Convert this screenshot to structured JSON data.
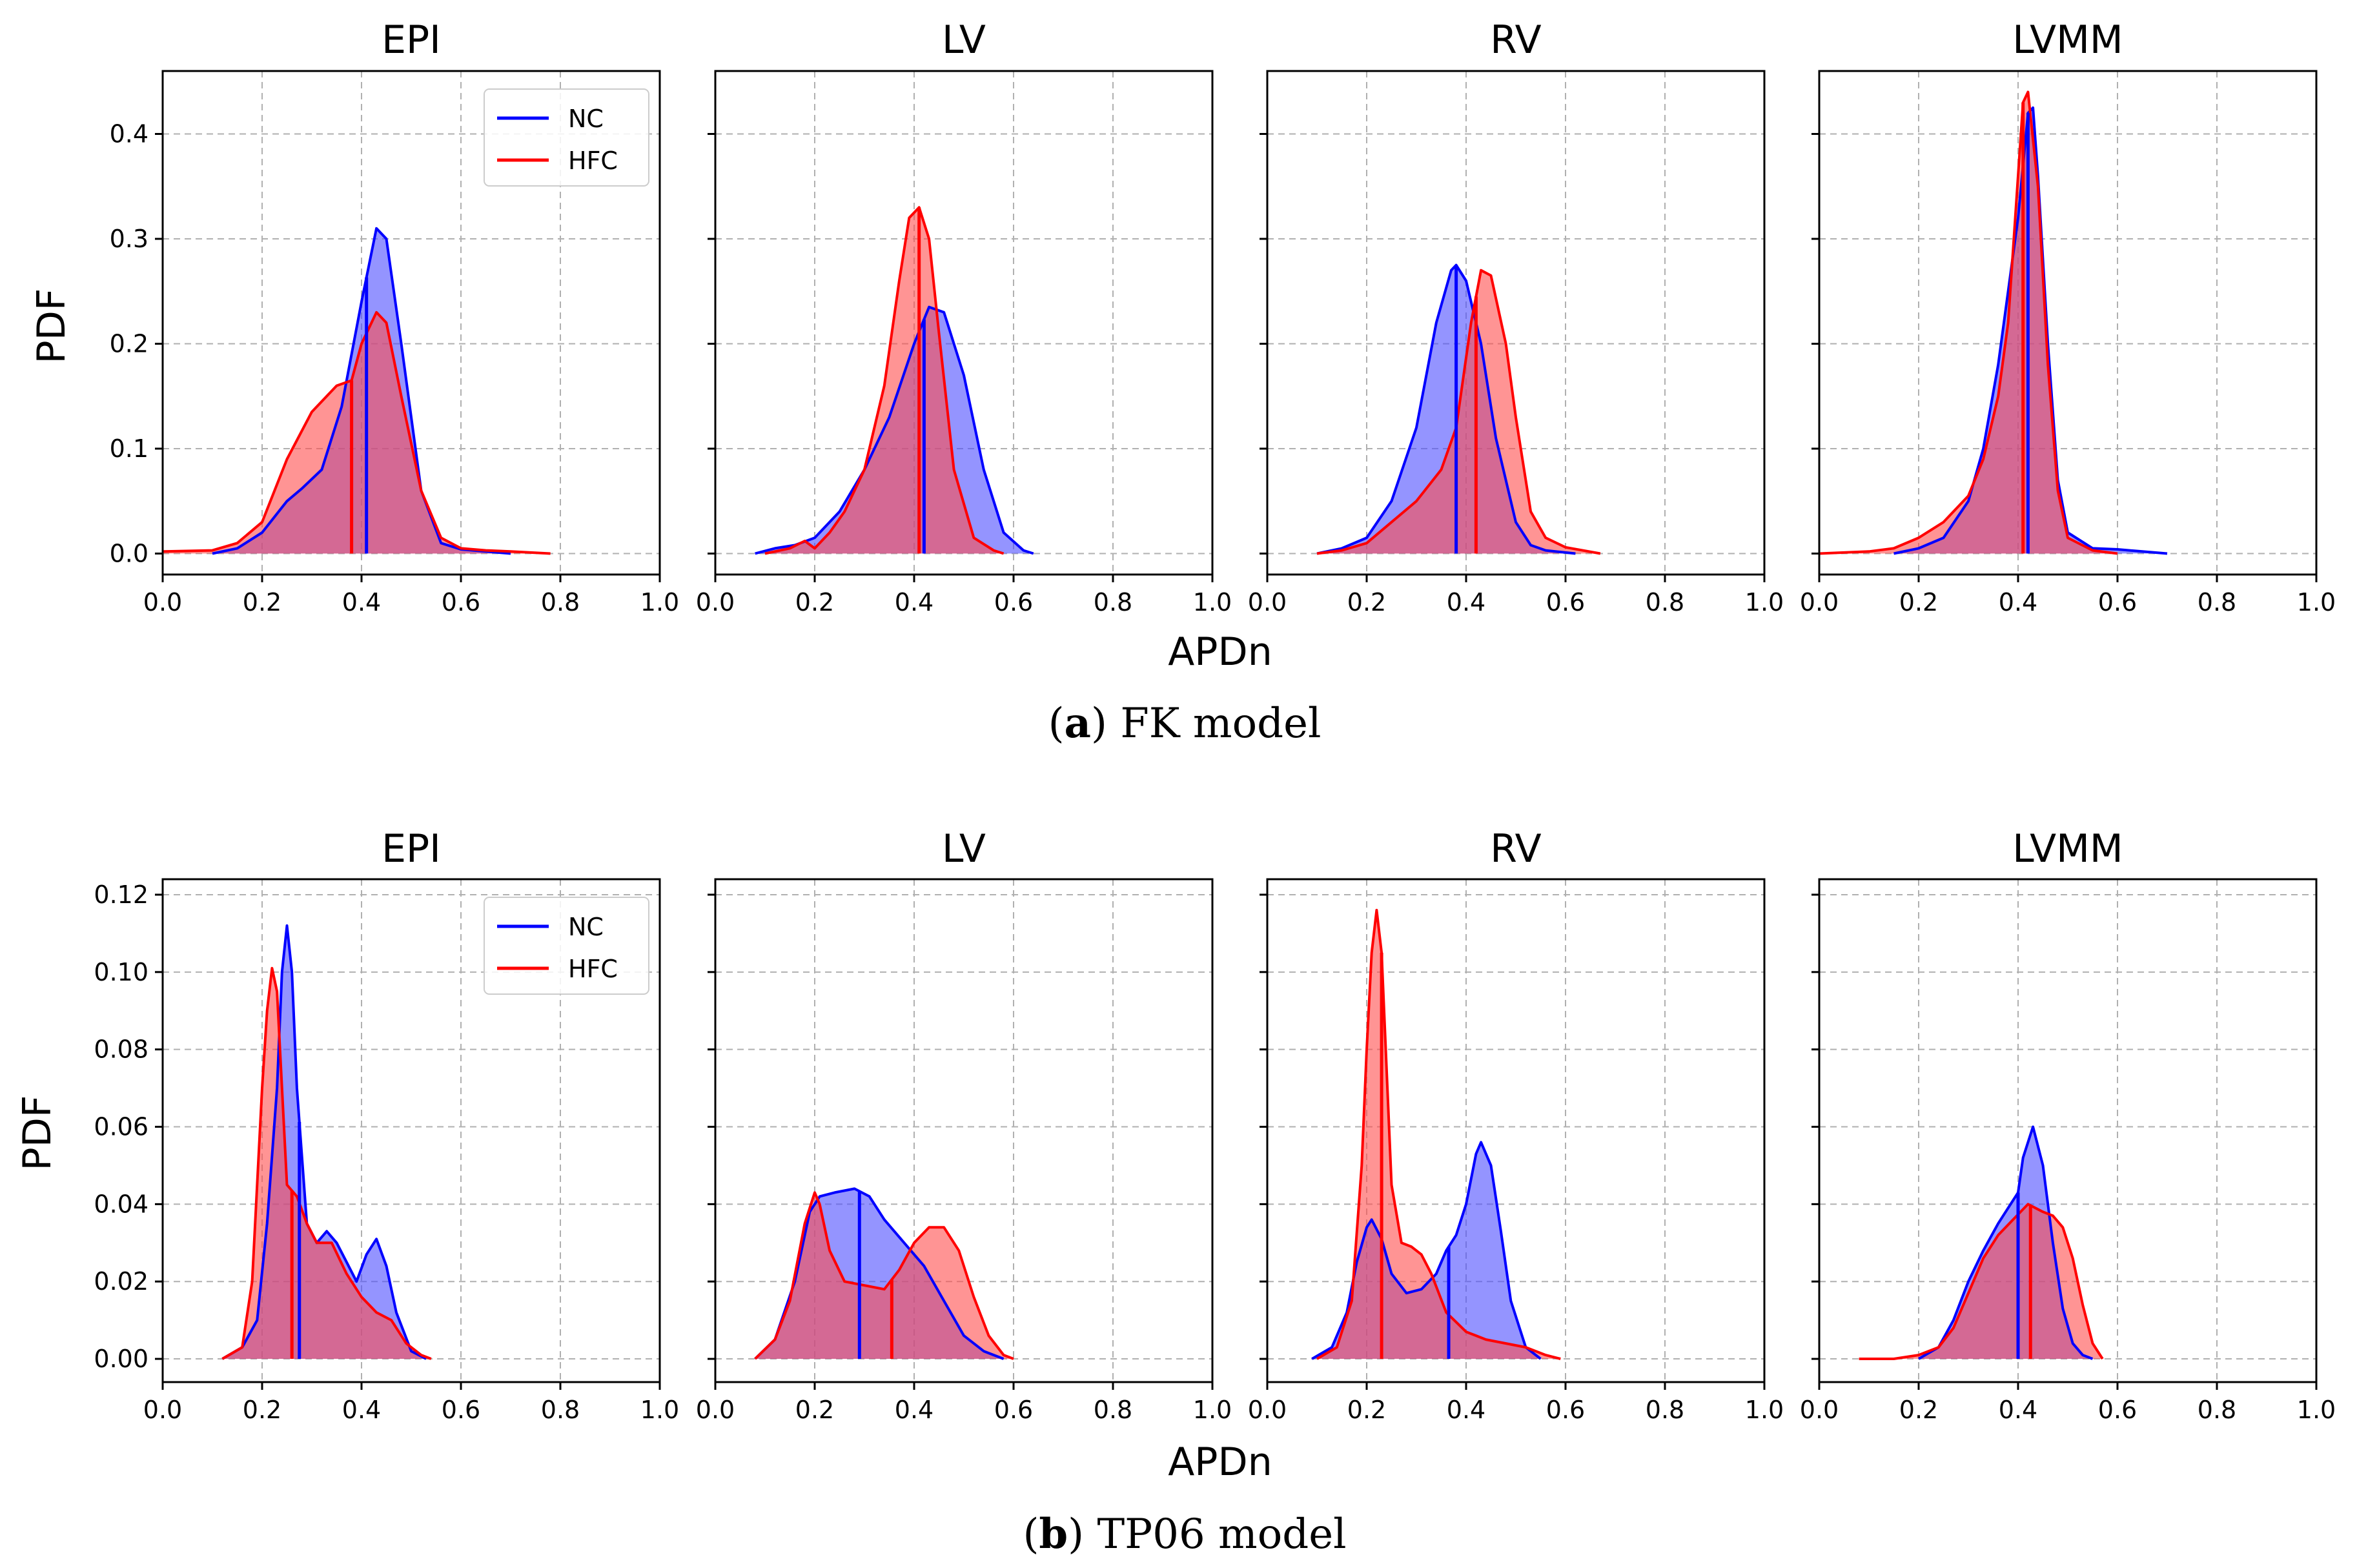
{
  "colors": {
    "nc": "#0000ff",
    "hfc": "#ff0000",
    "nc_fill": "#4d4dff",
    "hfc_fill": "#ff4d4d",
    "grid": "#b0b0b0"
  },
  "legend": {
    "nc": "NC",
    "hfc": "HFC"
  },
  "captions": [
    {
      "letter": "a",
      "text": ") FK model"
    },
    {
      "letter": "b",
      "text": ") TP06 model"
    }
  ],
  "chart_data": [
    {
      "type": "area",
      "title": "FK model",
      "xlabel": "APDn",
      "ylabel": "PDF",
      "xlim": [
        0.0,
        1.0
      ],
      "ylim": [
        -0.02,
        0.46
      ],
      "xticks": [
        0.0,
        0.2,
        0.4,
        0.6,
        0.8,
        1.0
      ],
      "xtick_labels": [
        "0.0",
        "0.2",
        "0.4",
        "0.6",
        "0.8",
        "1.0"
      ],
      "yticks": [
        0.0,
        0.1,
        0.2,
        0.3,
        0.4
      ],
      "ytick_labels": [
        "0.0",
        "0.1",
        "0.2",
        "0.3",
        "0.4"
      ],
      "panels": [
        {
          "title": "EPI",
          "series": [
            {
              "name": "NC",
              "x": [
                0.1,
                0.15,
                0.2,
                0.25,
                0.28,
                0.32,
                0.36,
                0.4,
                0.43,
                0.45,
                0.48,
                0.52,
                0.56,
                0.6,
                0.65,
                0.7
              ],
              "values": [
                0.0,
                0.005,
                0.02,
                0.05,
                0.062,
                0.08,
                0.14,
                0.24,
                0.31,
                0.3,
                0.2,
                0.06,
                0.01,
                0.004,
                0.002,
                0.0
              ],
              "mean": 0.41
            },
            {
              "name": "HFC",
              "x": [
                0.0,
                0.1,
                0.15,
                0.2,
                0.25,
                0.3,
                0.35,
                0.38,
                0.4,
                0.43,
                0.45,
                0.48,
                0.52,
                0.56,
                0.6,
                0.65,
                0.7,
                0.78
              ],
              "values": [
                0.002,
                0.003,
                0.01,
                0.03,
                0.09,
                0.135,
                0.16,
                0.165,
                0.2,
                0.23,
                0.22,
                0.15,
                0.06,
                0.015,
                0.005,
                0.003,
                0.002,
                0.0
              ],
              "mean": 0.38
            }
          ]
        },
        {
          "title": "LV",
          "series": [
            {
              "name": "NC",
              "x": [
                0.08,
                0.12,
                0.16,
                0.2,
                0.25,
                0.3,
                0.35,
                0.4,
                0.43,
                0.46,
                0.5,
                0.54,
                0.58,
                0.62,
                0.64
              ],
              "values": [
                0.0,
                0.005,
                0.008,
                0.015,
                0.04,
                0.08,
                0.13,
                0.2,
                0.235,
                0.23,
                0.17,
                0.08,
                0.02,
                0.003,
                0.0
              ],
              "mean": 0.42
            },
            {
              "name": "HFC",
              "x": [
                0.1,
                0.15,
                0.18,
                0.2,
                0.23,
                0.26,
                0.3,
                0.34,
                0.37,
                0.39,
                0.41,
                0.43,
                0.45,
                0.48,
                0.52,
                0.56,
                0.58
              ],
              "values": [
                0.0,
                0.005,
                0.012,
                0.005,
                0.02,
                0.04,
                0.08,
                0.16,
                0.26,
                0.32,
                0.33,
                0.3,
                0.21,
                0.08,
                0.015,
                0.003,
                0.0
              ],
              "mean": 0.41
            }
          ]
        },
        {
          "title": "RV",
          "series": [
            {
              "name": "NC",
              "x": [
                0.1,
                0.15,
                0.2,
                0.25,
                0.3,
                0.34,
                0.37,
                0.38,
                0.4,
                0.43,
                0.46,
                0.5,
                0.53,
                0.56,
                0.6,
                0.62
              ],
              "values": [
                0.0,
                0.005,
                0.015,
                0.05,
                0.12,
                0.22,
                0.27,
                0.275,
                0.26,
                0.2,
                0.11,
                0.03,
                0.008,
                0.003,
                0.001,
                0.0
              ],
              "mean": 0.38
            },
            {
              "name": "HFC",
              "x": [
                0.1,
                0.15,
                0.2,
                0.25,
                0.3,
                0.35,
                0.38,
                0.41,
                0.43,
                0.45,
                0.48,
                0.5,
                0.53,
                0.56,
                0.6,
                0.67
              ],
              "values": [
                0.0,
                0.003,
                0.01,
                0.03,
                0.05,
                0.08,
                0.12,
                0.22,
                0.27,
                0.265,
                0.2,
                0.13,
                0.04,
                0.015,
                0.006,
                0.0
              ],
              "mean": 0.42
            }
          ]
        },
        {
          "title": "LVMM",
          "series": [
            {
              "name": "NC",
              "x": [
                0.15,
                0.2,
                0.25,
                0.3,
                0.33,
                0.36,
                0.38,
                0.4,
                0.42,
                0.43,
                0.44,
                0.46,
                0.48,
                0.5,
                0.55,
                0.6,
                0.65,
                0.7
              ],
              "values": [
                0.0,
                0.005,
                0.015,
                0.05,
                0.1,
                0.18,
                0.25,
                0.32,
                0.42,
                0.425,
                0.36,
                0.2,
                0.07,
                0.02,
                0.005,
                0.004,
                0.002,
                0.0
              ],
              "mean": 0.42
            },
            {
              "name": "HFC",
              "x": [
                0.0,
                0.1,
                0.15,
                0.2,
                0.25,
                0.3,
                0.33,
                0.36,
                0.38,
                0.4,
                0.41,
                0.42,
                0.44,
                0.46,
                0.48,
                0.5,
                0.55,
                0.6
              ],
              "values": [
                0.0,
                0.002,
                0.005,
                0.015,
                0.03,
                0.055,
                0.09,
                0.15,
                0.22,
                0.36,
                0.43,
                0.44,
                0.35,
                0.18,
                0.06,
                0.015,
                0.003,
                0.0
              ],
              "mean": 0.41
            }
          ]
        }
      ]
    },
    {
      "type": "area",
      "title": "TP06 model",
      "xlabel": "APDn",
      "ylabel": "PDF",
      "xlim": [
        0.0,
        1.0
      ],
      "ylim": [
        -0.006,
        0.124
      ],
      "xticks": [
        0.0,
        0.2,
        0.4,
        0.6,
        0.8,
        1.0
      ],
      "xtick_labels": [
        "0.0",
        "0.2",
        "0.4",
        "0.6",
        "0.8",
        "1.0"
      ],
      "yticks": [
        0.0,
        0.02,
        0.04,
        0.06,
        0.08,
        0.1,
        0.12
      ],
      "ytick_labels": [
        "0.00",
        "0.02",
        "0.04",
        "0.06",
        "0.08",
        "0.10",
        "0.12"
      ],
      "panels": [
        {
          "title": "EPI",
          "series": [
            {
              "name": "NC",
              "x": [
                0.12,
                0.16,
                0.19,
                0.21,
                0.23,
                0.24,
                0.25,
                0.26,
                0.27,
                0.29,
                0.31,
                0.33,
                0.35,
                0.37,
                0.39,
                0.41,
                0.43,
                0.45,
                0.47,
                0.5,
                0.53
              ],
              "values": [
                0.0,
                0.003,
                0.01,
                0.035,
                0.07,
                0.1,
                0.112,
                0.1,
                0.07,
                0.035,
                0.03,
                0.033,
                0.03,
                0.025,
                0.02,
                0.027,
                0.031,
                0.024,
                0.012,
                0.002,
                0.0
              ],
              "mean": 0.275
            },
            {
              "name": "HFC",
              "x": [
                0.12,
                0.16,
                0.18,
                0.2,
                0.21,
                0.22,
                0.23,
                0.24,
                0.25,
                0.27,
                0.29,
                0.31,
                0.34,
                0.37,
                0.4,
                0.43,
                0.46,
                0.49,
                0.52,
                0.54
              ],
              "values": [
                0.0,
                0.003,
                0.02,
                0.07,
                0.09,
                0.101,
                0.095,
                0.07,
                0.045,
                0.042,
                0.035,
                0.03,
                0.03,
                0.022,
                0.016,
                0.012,
                0.01,
                0.004,
                0.001,
                0.0
              ],
              "mean": 0.26
            }
          ]
        },
        {
          "title": "LV",
          "series": [
            {
              "name": "NC",
              "x": [
                0.08,
                0.12,
                0.16,
                0.19,
                0.21,
                0.24,
                0.28,
                0.31,
                0.34,
                0.38,
                0.42,
                0.46,
                0.5,
                0.54,
                0.58
              ],
              "values": [
                0.0,
                0.005,
                0.02,
                0.038,
                0.042,
                0.043,
                0.044,
                0.042,
                0.036,
                0.03,
                0.024,
                0.015,
                0.006,
                0.002,
                0.0
              ],
              "mean": 0.29
            },
            {
              "name": "HFC",
              "x": [
                0.08,
                0.12,
                0.15,
                0.18,
                0.2,
                0.21,
                0.23,
                0.26,
                0.3,
                0.34,
                0.37,
                0.4,
                0.43,
                0.46,
                0.49,
                0.52,
                0.55,
                0.58,
                0.6
              ],
              "values": [
                0.0,
                0.005,
                0.015,
                0.035,
                0.043,
                0.04,
                0.028,
                0.02,
                0.019,
                0.018,
                0.023,
                0.03,
                0.034,
                0.034,
                0.028,
                0.016,
                0.006,
                0.001,
                0.0
              ],
              "mean": 0.355
            }
          ]
        },
        {
          "title": "RV",
          "series": [
            {
              "name": "NC",
              "x": [
                0.09,
                0.13,
                0.16,
                0.18,
                0.2,
                0.21,
                0.23,
                0.25,
                0.28,
                0.31,
                0.34,
                0.36,
                0.38,
                0.4,
                0.42,
                0.43,
                0.45,
                0.47,
                0.49,
                0.52,
                0.55
              ],
              "values": [
                0.0,
                0.003,
                0.012,
                0.025,
                0.034,
                0.036,
                0.031,
                0.022,
                0.017,
                0.018,
                0.022,
                0.028,
                0.032,
                0.04,
                0.053,
                0.056,
                0.05,
                0.033,
                0.015,
                0.003,
                0.0
              ],
              "mean": 0.365
            },
            {
              "name": "HFC",
              "x": [
                0.1,
                0.14,
                0.17,
                0.19,
                0.2,
                0.21,
                0.22,
                0.23,
                0.24,
                0.25,
                0.27,
                0.29,
                0.31,
                0.33,
                0.36,
                0.4,
                0.44,
                0.48,
                0.52,
                0.56,
                0.59
              ],
              "values": [
                0.0,
                0.003,
                0.015,
                0.05,
                0.08,
                0.105,
                0.116,
                0.105,
                0.075,
                0.045,
                0.03,
                0.029,
                0.027,
                0.022,
                0.012,
                0.007,
                0.005,
                0.004,
                0.003,
                0.001,
                0.0
              ],
              "mean": 0.23
            }
          ]
        },
        {
          "title": "LVMM",
          "series": [
            {
              "name": "NC",
              "x": [
                0.2,
                0.24,
                0.27,
                0.3,
                0.33,
                0.36,
                0.38,
                0.4,
                0.41,
                0.43,
                0.45,
                0.47,
                0.49,
                0.51,
                0.53,
                0.55
              ],
              "values": [
                0.0,
                0.003,
                0.01,
                0.02,
                0.028,
                0.035,
                0.039,
                0.043,
                0.052,
                0.06,
                0.05,
                0.03,
                0.013,
                0.004,
                0.001,
                0.0
              ],
              "mean": 0.4
            },
            {
              "name": "HFC",
              "x": [
                0.08,
                0.15,
                0.2,
                0.24,
                0.27,
                0.3,
                0.33,
                0.36,
                0.39,
                0.42,
                0.45,
                0.47,
                0.49,
                0.51,
                0.53,
                0.55,
                0.57
              ],
              "values": [
                0.0,
                0.0,
                0.001,
                0.003,
                0.008,
                0.017,
                0.026,
                0.032,
                0.036,
                0.04,
                0.038,
                0.037,
                0.034,
                0.026,
                0.014,
                0.004,
                0.0
              ],
              "mean": 0.425
            }
          ]
        }
      ]
    }
  ]
}
